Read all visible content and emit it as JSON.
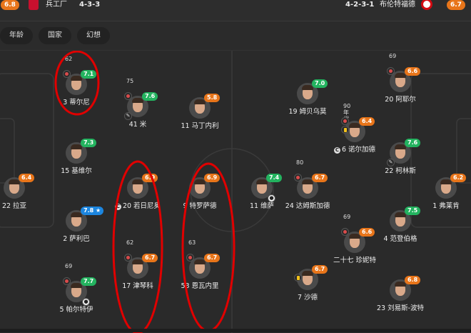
{
  "header": {
    "home": {
      "rating": "6.8",
      "name": "兵工厂",
      "formation": "4-3-3"
    },
    "away": {
      "rating": "6.7",
      "name": "布伦特福德",
      "formation": "4-2-3-1"
    }
  },
  "filters": [
    "年龄",
    "国家",
    "幻想"
  ],
  "colors": {
    "green": "#23b35f",
    "orange": "#e8751a",
    "blue": "#1c86e0",
    "annotation": "#e00000"
  },
  "players": [
    {
      "name": "3 蒂尔尼",
      "rating": "7.1",
      "color": "green",
      "sub": "62",
      "subOut": true,
      "highlight": true
    },
    {
      "name": "41 米",
      "rating": "7.6",
      "color": "green",
      "sub": "75",
      "subOut": true,
      "assist": true
    },
    {
      "name": "11 马丁内利",
      "rating": "5.8",
      "color": "orange"
    },
    {
      "name": "15 基维尔",
      "rating": "7.3",
      "color": "green"
    },
    {
      "name": "22 拉亚",
      "rating": "6.4",
      "color": "orange"
    },
    {
      "name": "20 若日尼奥",
      "rating": "6.9",
      "color": "orange",
      "captain": true,
      "highlight": true
    },
    {
      "name": "9 特罗萨德",
      "rating": "6.9",
      "color": "orange",
      "highlight": true
    },
    {
      "name": "2 萨利巴",
      "rating": "7.8 ★",
      "color": "blue"
    },
    {
      "name": "17 津琴科",
      "rating": "6.7",
      "color": "orange",
      "sub": "62",
      "subOut": true,
      "highlight": true
    },
    {
      "name": "53 恩瓦内里",
      "rating": "6.7",
      "color": "orange",
      "sub": "63",
      "subOut": true,
      "highlight": true
    },
    {
      "name": "5 帕尔特伊",
      "rating": "7.7",
      "color": "green",
      "sub": "69",
      "subOut": true,
      "goal": true
    },
    {
      "name": "19 姆贝乌莫",
      "rating": "7.0",
      "color": "green"
    },
    {
      "name": "20 阿耶尔",
      "rating": "6.6",
      "color": "orange",
      "sub": "69",
      "subOut": true
    },
    {
      "name": "6 诺尔加德",
      "rating": "6.4",
      "color": "orange",
      "sub": "90 年代",
      "subOut": true,
      "yellow": true,
      "captain": true
    },
    {
      "name": "22 柯林斯",
      "rating": "7.6",
      "color": "green",
      "assist": true
    },
    {
      "name": "11 维萨",
      "rating": "7.4",
      "color": "green",
      "goal": true
    },
    {
      "name": "24 达姆斯加德",
      "rating": "6.7",
      "color": "orange",
      "sub": "80",
      "subOut": true
    },
    {
      "name": "1 弗莱肯",
      "rating": "6.2",
      "color": "orange"
    },
    {
      "name": "4 范登伯格",
      "rating": "7.5",
      "color": "green"
    },
    {
      "name": "二十七 珍妮特",
      "rating": "6.6",
      "color": "orange",
      "sub": "69",
      "subOut": true
    },
    {
      "name": "7 沙德",
      "rating": "6.7",
      "color": "orange",
      "yellow": true
    },
    {
      "name": "23 刘易斯-波特",
      "rating": "6.8",
      "color": "orange"
    }
  ]
}
